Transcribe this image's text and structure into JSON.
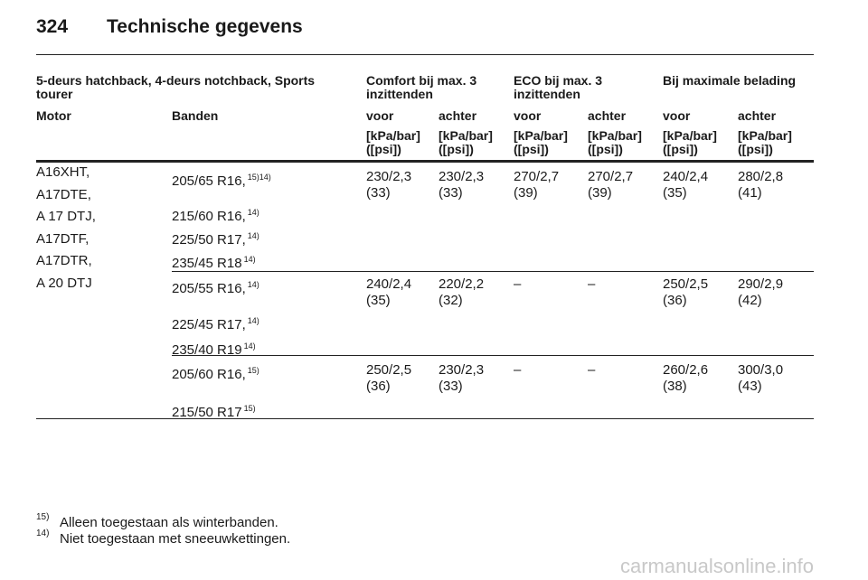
{
  "header": {
    "page": "324",
    "title": "Technische gegevens"
  },
  "table": {
    "group_headers": [
      "5-deurs hatchback, 4-deurs notchback, Sports tourer",
      "Comfort bij max. 3 inzittenden",
      "ECO bij max. 3 inzittenden",
      "Bij maximale belading"
    ],
    "columns": [
      "Motor",
      "Banden",
      "voor",
      "achter",
      "voor",
      "achter",
      "voor",
      "achter"
    ],
    "units": [
      "[kPa/bar] ([psi])",
      "[kPa/bar] ([psi])",
      "[kPa/bar] ([psi])",
      "[kPa/bar] ([psi])",
      "[kPa/bar] ([psi])",
      "[kPa/bar] ([psi])"
    ],
    "motors": [
      "A16XHT,",
      "A17DTE,",
      "A 17 DTJ,",
      "A17DTF,",
      "A17DTR,",
      "A 20 DTJ"
    ],
    "groups": [
      {
        "tyres": [
          {
            "size": "205/65 R16,",
            "note": "15)14)"
          },
          {
            "size": "215/60 R16,",
            "note": "14)"
          },
          {
            "size": "225/50 R17,",
            "note": "14)"
          },
          {
            "size": "235/45 R18",
            "note": "14)"
          }
        ],
        "pressures": [
          [
            "230/2,3",
            "(33)"
          ],
          [
            "230/2,3",
            "(33)"
          ],
          [
            "270/2,7",
            "(39)"
          ],
          [
            "270/2,7",
            "(39)"
          ],
          [
            "240/2,4",
            "(35)"
          ],
          [
            "280/2,8",
            "(41)"
          ]
        ]
      },
      {
        "tyres": [
          {
            "size": "205/55 R16,",
            "note": "14)"
          },
          {
            "size": "225/45 R17,",
            "note": "14)"
          },
          {
            "size": "235/40 R19",
            "note": "14)"
          }
        ],
        "pressures": [
          [
            "240/2,4",
            "(35)"
          ],
          [
            "220/2,2",
            "(32)"
          ],
          [
            "–"
          ],
          [
            "–"
          ],
          [
            "250/2,5",
            "(36)"
          ],
          [
            "290/2,9",
            "(42)"
          ]
        ]
      },
      {
        "tyres": [
          {
            "size": "205/60 R16,",
            "note": "15)"
          },
          {
            "size": "215/50 R17",
            "note": "15)"
          }
        ],
        "pressures": [
          [
            "250/2,5",
            "(36)"
          ],
          [
            "230/2,3",
            "(33)"
          ],
          [
            "–"
          ],
          [
            "–"
          ],
          [
            "260/2,6",
            "(38)"
          ],
          [
            "300/3,0",
            "(43)"
          ]
        ]
      }
    ]
  },
  "footnotes": [
    {
      "mark": "15)",
      "text": "Alleen toegestaan als winterbanden."
    },
    {
      "mark": "14)",
      "text": "Niet toegestaan met sneeuwkettingen."
    }
  ],
  "watermark": "carmanualsonline.info"
}
